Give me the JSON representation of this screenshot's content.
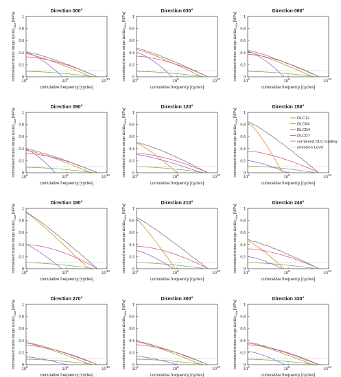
{
  "figure": {
    "xlabel": "cumulative frequency [cycles]",
    "ylabel_main": "normalised stress range  Δσ/Δσ",
    "ylabel_sub": "max",
    "ylabel_unit": " [MPa]",
    "x_ticks": [
      {
        "base": "10",
        "exp": "0"
      },
      {
        "base": "10",
        "exp": "5"
      },
      {
        "base": "10",
        "exp": "10"
      }
    ],
    "y_ticks": [
      "0",
      "0.2",
      "0.4",
      "0.6",
      "0.8",
      "1"
    ]
  },
  "legend": {
    "placement": "panel 6, upper-right",
    "entries": [
      {
        "label": "DLC12",
        "color": "#e0801a",
        "style": "solid"
      },
      {
        "label": "DLC64",
        "color": "#6ab04c",
        "style": "solid"
      },
      {
        "label": "DLCD4",
        "color": "#8e5bd6",
        "style": "solid"
      },
      {
        "label": "DLCD7",
        "color": "#d6508a",
        "style": "solid"
      },
      {
        "label": "combined DLC loading",
        "color": "#888888",
        "style": "solid"
      },
      {
        "label": "omission Level",
        "color": "#aaaaaa",
        "style": "dashed"
      }
    ]
  },
  "chart_data": [
    {
      "type": "line",
      "title": "Direction 000°",
      "xscale": "log",
      "xlim": [
        1,
        10000000000.0
      ],
      "ylim": [
        0,
        1
      ],
      "omission": 0.1,
      "series": [
        {
          "ref": "DLC12",
          "y0": 0.38,
          "end": 8.0,
          "p": 1.25
        },
        {
          "ref": "DLC64",
          "y0": 0.09,
          "end": 8.5,
          "p": 1.6
        },
        {
          "ref": "DLCD4",
          "y0": 0.4,
          "end": 4.5,
          "p": 1.4
        },
        {
          "ref": "DLCD7",
          "y0": 0.33,
          "end": 8.8,
          "p": 1.6
        },
        {
          "ref": "combined",
          "y0": 0.41,
          "end": 8.8,
          "p": 1.25
        }
      ]
    },
    {
      "type": "line",
      "title": "Direction 030°",
      "xscale": "log",
      "xlim": [
        1,
        10000000000.0
      ],
      "ylim": [
        0,
        1
      ],
      "omission": 0.1,
      "series": [
        {
          "ref": "DLC12",
          "y0": 0.45,
          "end": 8.0,
          "p": 1.2
        },
        {
          "ref": "DLC64",
          "y0": 0.09,
          "end": 8.5,
          "p": 1.6
        },
        {
          "ref": "DLCD4",
          "y0": 0.4,
          "end": 4.4,
          "p": 1.4
        },
        {
          "ref": "DLCD7",
          "y0": 0.34,
          "end": 8.8,
          "p": 1.6
        },
        {
          "ref": "combined",
          "y0": 0.47,
          "end": 8.8,
          "p": 1.2
        }
      ]
    },
    {
      "type": "line",
      "title": "Direction 060°",
      "xscale": "log",
      "xlim": [
        1,
        10000000000.0
      ],
      "ylim": [
        0,
        1
      ],
      "omission": 0.1,
      "series": [
        {
          "ref": "DLC12",
          "y0": 0.41,
          "end": 8.0,
          "p": 1.2
        },
        {
          "ref": "DLC64",
          "y0": 0.09,
          "end": 8.5,
          "p": 1.6
        },
        {
          "ref": "DLCD4",
          "y0": 0.42,
          "end": 4.5,
          "p": 1.4
        },
        {
          "ref": "DLCD7",
          "y0": 0.37,
          "end": 8.8,
          "p": 1.6
        },
        {
          "ref": "combined",
          "y0": 0.44,
          "end": 8.8,
          "p": 1.2
        }
      ]
    },
    {
      "type": "line",
      "title": "Direction 090°",
      "xscale": "log",
      "xlim": [
        1,
        10000000000.0
      ],
      "ylim": [
        0,
        1
      ],
      "omission": 0.1,
      "series": [
        {
          "ref": "DLC12",
          "y0": 0.37,
          "end": 8.0,
          "p": 1.25
        },
        {
          "ref": "DLC64",
          "y0": 0.09,
          "end": 8.5,
          "p": 1.6
        },
        {
          "ref": "DLCD4",
          "y0": 0.38,
          "end": 3.6,
          "p": 1.4
        },
        {
          "ref": "DLCD7",
          "y0": 0.32,
          "end": 8.8,
          "p": 1.6
        },
        {
          "ref": "combined",
          "y0": 0.39,
          "end": 8.8,
          "p": 1.25
        }
      ]
    },
    {
      "type": "line",
      "title": "Direction 120°",
      "xscale": "log",
      "xlim": [
        1,
        10000000000.0
      ],
      "ylim": [
        0,
        1
      ],
      "omission": 0.1,
      "series": [
        {
          "ref": "DLC12",
          "y0": 0.49,
          "end": 5.0,
          "p": 1.2
        },
        {
          "ref": "DLC64",
          "y0": 0.1,
          "end": 8.5,
          "p": 1.6
        },
        {
          "ref": "DLCD4",
          "y0": 0.3,
          "end": 8.0,
          "p": 1.3
        },
        {
          "ref": "DLCD7",
          "y0": 0.32,
          "end": 8.8,
          "p": 1.6
        },
        {
          "ref": "combined",
          "y0": 0.5,
          "end": 8.8,
          "p": 1.25
        }
      ]
    },
    {
      "type": "line",
      "title": "Direction 150°",
      "xscale": "log",
      "xlim": [
        1,
        10000000000.0
      ],
      "ylim": [
        0,
        1
      ],
      "omission": 0.1,
      "series": [
        {
          "ref": "DLC12",
          "y0": 0.83,
          "end": 4.3,
          "p": 1.3
        },
        {
          "ref": "DLC64",
          "y0": 0.11,
          "end": 8.5,
          "p": 1.6
        },
        {
          "ref": "DLCD4",
          "y0": 0.2,
          "end": 4.9,
          "p": 1.4
        },
        {
          "ref": "DLCD7",
          "y0": 0.36,
          "end": 8.8,
          "p": 1.5
        },
        {
          "ref": "combined",
          "y0": 0.85,
          "end": 8.8,
          "p": 1.15
        }
      ]
    },
    {
      "type": "line",
      "title": "Direction 180°",
      "xscale": "log",
      "xlim": [
        1,
        10000000000.0
      ],
      "ylim": [
        0,
        1
      ],
      "omission": 0.1,
      "series": [
        {
          "ref": "DLC12",
          "y0": 0.93,
          "end": 7.7,
          "p": 1.1
        },
        {
          "ref": "DLC64",
          "y0": 0.1,
          "end": 8.5,
          "p": 1.6
        },
        {
          "ref": "DLCD4",
          "y0": 0.4,
          "end": 4.4,
          "p": 1.2
        },
        {
          "ref": "DLCD7",
          "y0": 0.4,
          "end": 8.8,
          "p": 1.7
        },
        {
          "ref": "combined",
          "y0": 0.94,
          "end": 8.8,
          "p": 1.1
        }
      ]
    },
    {
      "type": "line",
      "title": "Direction 210°",
      "xscale": "log",
      "xlim": [
        1,
        10000000000.0
      ],
      "ylim": [
        0,
        1
      ],
      "omission": 0.1,
      "series": [
        {
          "ref": "DLC12",
          "y0": 0.83,
          "end": 4.8,
          "p": 1.1
        },
        {
          "ref": "DLC64",
          "y0": 0.1,
          "end": 8.5,
          "p": 1.6
        },
        {
          "ref": "DLCD4",
          "y0": 0.3,
          "end": 4.6,
          "p": 1.3
        },
        {
          "ref": "DLCD7",
          "y0": 0.37,
          "end": 8.8,
          "p": 1.7
        },
        {
          "ref": "combined",
          "y0": 0.85,
          "end": 8.8,
          "p": 1.1
        }
      ]
    },
    {
      "type": "line",
      "title": "Direction 240°",
      "xscale": "log",
      "xlim": [
        1,
        10000000000.0
      ],
      "ylim": [
        0,
        1
      ],
      "omission": 0.1,
      "series": [
        {
          "ref": "DLC12",
          "y0": 0.46,
          "end": 4.5,
          "p": 1.2
        },
        {
          "ref": "DLC64",
          "y0": 0.1,
          "end": 8.5,
          "p": 1.6
        },
        {
          "ref": "DLCD4",
          "y0": 0.2,
          "end": 4.3,
          "p": 1.4
        },
        {
          "ref": "DLCD7",
          "y0": 0.33,
          "end": 8.8,
          "p": 1.6
        },
        {
          "ref": "combined",
          "y0": 0.48,
          "end": 8.8,
          "p": 1.2
        }
      ]
    },
    {
      "type": "line",
      "title": "Direction 270°",
      "xscale": "log",
      "xlim": [
        1,
        10000000000.0
      ],
      "ylim": [
        0,
        1
      ],
      "omission": 0.1,
      "series": [
        {
          "ref": "DLC12",
          "y0": 0.36,
          "end": 8.0,
          "p": 1.2
        },
        {
          "ref": "DLC64",
          "y0": 0.09,
          "end": 8.5,
          "p": 1.6
        },
        {
          "ref": "DLCD4",
          "y0": 0.13,
          "end": 5.0,
          "p": 1.4
        },
        {
          "ref": "DLCD7",
          "y0": 0.32,
          "end": 8.8,
          "p": 1.6
        },
        {
          "ref": "combined",
          "y0": 0.37,
          "end": 8.8,
          "p": 1.2
        }
      ]
    },
    {
      "type": "line",
      "title": "Direction 300°",
      "xscale": "log",
      "xlim": [
        1,
        10000000000.0
      ],
      "ylim": [
        0,
        1
      ],
      "omission": 0.1,
      "series": [
        {
          "ref": "DLC12",
          "y0": 0.38,
          "end": 8.0,
          "p": 1.2
        },
        {
          "ref": "DLC64",
          "y0": 0.09,
          "end": 8.5,
          "p": 1.6
        },
        {
          "ref": "DLCD4",
          "y0": 0.14,
          "end": 5.0,
          "p": 1.4
        },
        {
          "ref": "DLCD7",
          "y0": 0.33,
          "end": 8.8,
          "p": 1.6
        },
        {
          "ref": "combined",
          "y0": 0.39,
          "end": 8.8,
          "p": 1.2
        }
      ]
    },
    {
      "type": "line",
      "title": "Direction 330°",
      "xscale": "log",
      "xlim": [
        1,
        10000000000.0
      ],
      "ylim": [
        0,
        1
      ],
      "omission": 0.1,
      "series": [
        {
          "ref": "DLC12",
          "y0": 0.36,
          "end": 8.0,
          "p": 1.2
        },
        {
          "ref": "DLC64",
          "y0": 0.09,
          "end": 8.5,
          "p": 1.6
        },
        {
          "ref": "DLCD4",
          "y0": 0.22,
          "end": 4.6,
          "p": 1.4
        },
        {
          "ref": "DLCD7",
          "y0": 0.33,
          "end": 8.8,
          "p": 1.6
        },
        {
          "ref": "combined",
          "y0": 0.37,
          "end": 8.8,
          "p": 1.2
        }
      ]
    }
  ]
}
